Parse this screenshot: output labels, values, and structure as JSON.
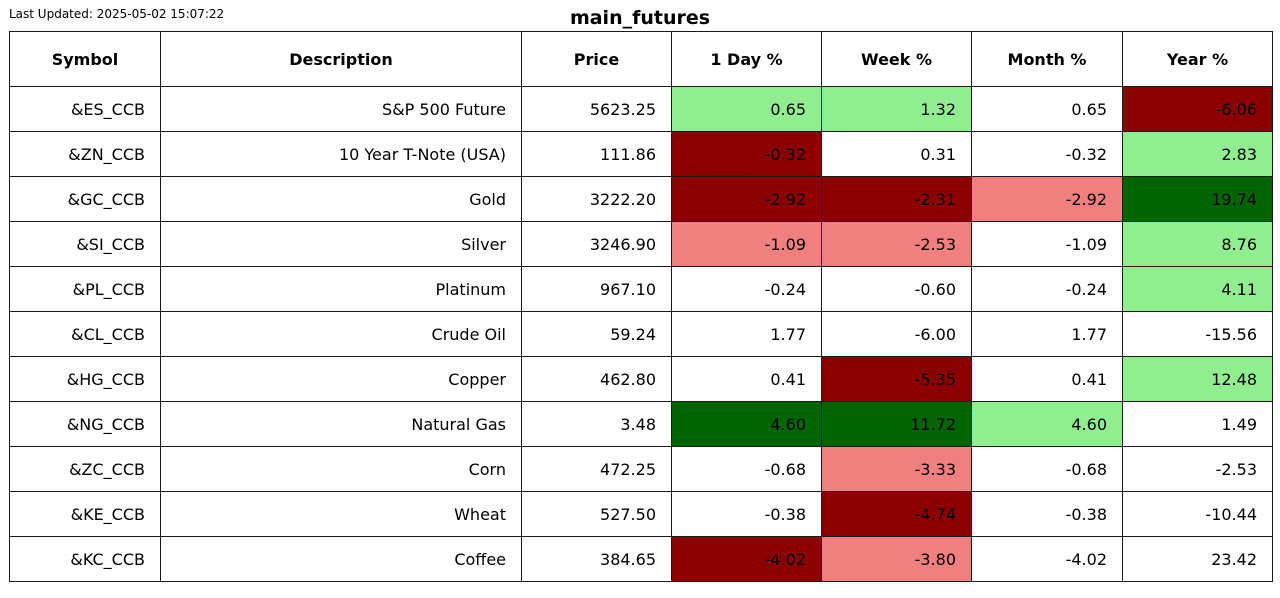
{
  "last_updated": "Last Updated: 2025-05-02 15:07:22",
  "title": "main_futures",
  "colors": {
    "dark_red": "#8b0000",
    "light_red": "#f08080",
    "light_green": "#90ee90",
    "dark_green": "#006400",
    "neutral": "#ffffff"
  },
  "chart_data": {
    "type": "table",
    "title": "main_futures",
    "columns": [
      "Symbol",
      "Description",
      "Price",
      "1 Day %",
      "Week %",
      "Month %",
      "Year %"
    ],
    "rows": [
      {
        "symbol": "&ES_CCB",
        "description": "S&P 500 Future",
        "price": "5623.25",
        "pct": [
          "0.65",
          "1.32",
          "0.65",
          "-6.06"
        ],
        "shade": [
          "light_green",
          "light_green",
          "neutral",
          "dark_red"
        ]
      },
      {
        "symbol": "&ZN_CCB",
        "description": "10 Year T-Note (USA)",
        "price": "111.86",
        "pct": [
          "-0.32",
          "0.31",
          "-0.32",
          "2.83"
        ],
        "shade": [
          "dark_red",
          "neutral",
          "neutral",
          "light_green"
        ]
      },
      {
        "symbol": "&GC_CCB",
        "description": "Gold",
        "price": "3222.20",
        "pct": [
          "-2.92",
          "-2.31",
          "-2.92",
          "19.74"
        ],
        "shade": [
          "dark_red",
          "dark_red",
          "light_red",
          "dark_green"
        ]
      },
      {
        "symbol": "&SI_CCB",
        "description": "Silver",
        "price": "3246.90",
        "pct": [
          "-1.09",
          "-2.53",
          "-1.09",
          "8.76"
        ],
        "shade": [
          "light_red",
          "light_red",
          "neutral",
          "light_green"
        ]
      },
      {
        "symbol": "&PL_CCB",
        "description": "Platinum",
        "price": "967.10",
        "pct": [
          "-0.24",
          "-0.60",
          "-0.24",
          "4.11"
        ],
        "shade": [
          "neutral",
          "neutral",
          "neutral",
          "light_green"
        ]
      },
      {
        "symbol": "&CL_CCB",
        "description": "Crude Oil",
        "price": "59.24",
        "pct": [
          "1.77",
          "-6.00",
          "1.77",
          "-15.56"
        ],
        "shade": [
          "neutral",
          "neutral",
          "neutral",
          "neutral"
        ]
      },
      {
        "symbol": "&HG_CCB",
        "description": "Copper",
        "price": "462.80",
        "pct": [
          "0.41",
          "-5.35",
          "0.41",
          "12.48"
        ],
        "shade": [
          "neutral",
          "dark_red",
          "neutral",
          "light_green"
        ]
      },
      {
        "symbol": "&NG_CCB",
        "description": "Natural Gas",
        "price": "3.48",
        "pct": [
          "4.60",
          "11.72",
          "4.60",
          "1.49"
        ],
        "shade": [
          "dark_green",
          "dark_green",
          "light_green",
          "neutral"
        ]
      },
      {
        "symbol": "&ZC_CCB",
        "description": "Corn",
        "price": "472.25",
        "pct": [
          "-0.68",
          "-3.33",
          "-0.68",
          "-2.53"
        ],
        "shade": [
          "neutral",
          "light_red",
          "neutral",
          "neutral"
        ]
      },
      {
        "symbol": "&KE_CCB",
        "description": "Wheat",
        "price": "527.50",
        "pct": [
          "-0.38",
          "-4.74",
          "-0.38",
          "-10.44"
        ],
        "shade": [
          "neutral",
          "dark_red",
          "neutral",
          "neutral"
        ]
      },
      {
        "symbol": "&KC_CCB",
        "description": "Coffee",
        "price": "384.65",
        "pct": [
          "-4.02",
          "-3.80",
          "-4.02",
          "23.42"
        ],
        "shade": [
          "dark_red",
          "light_red",
          "neutral",
          "neutral"
        ]
      }
    ]
  }
}
